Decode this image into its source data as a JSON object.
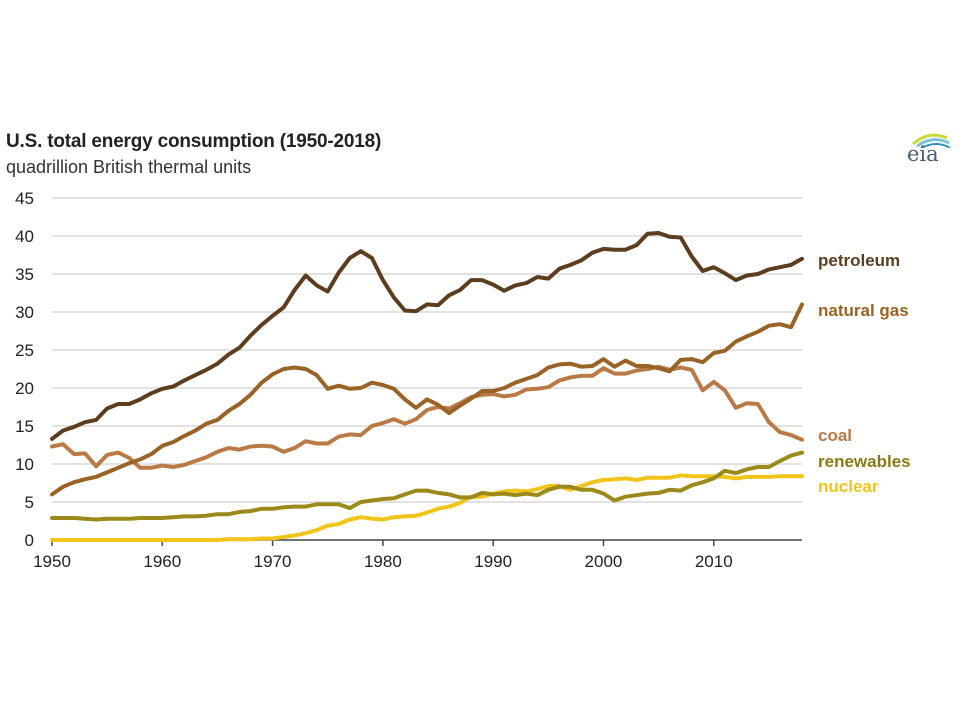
{
  "header": {
    "title": "U.S. total energy consumption (1950-2018)",
    "subtitle": "quadrillion British thermal units",
    "logo_text": "eia"
  },
  "chart_data": {
    "type": "line",
    "title": "U.S. total energy consumption (1950-2018)",
    "subtitle": "quadrillion British thermal units",
    "xlabel": "",
    "ylabel": "quadrillion British thermal units",
    "xlim": [
      1950,
      2018
    ],
    "ylim": [
      0,
      45
    ],
    "xticks": [
      1950,
      1960,
      1970,
      1980,
      1990,
      2000,
      2010
    ],
    "yticks": [
      0,
      5,
      10,
      15,
      20,
      25,
      30,
      35,
      40,
      45
    ],
    "grid": "horizontal",
    "legend": "direct labels at right end of lines",
    "x": [
      1950,
      1951,
      1952,
      1953,
      1954,
      1955,
      1956,
      1957,
      1958,
      1959,
      1960,
      1961,
      1962,
      1963,
      1964,
      1965,
      1966,
      1967,
      1968,
      1969,
      1970,
      1971,
      1972,
      1973,
      1974,
      1975,
      1976,
      1977,
      1978,
      1979,
      1980,
      1981,
      1982,
      1983,
      1984,
      1985,
      1986,
      1987,
      1988,
      1989,
      1990,
      1991,
      1992,
      1993,
      1994,
      1995,
      1996,
      1997,
      1998,
      1999,
      2000,
      2001,
      2002,
      2003,
      2004,
      2005,
      2006,
      2007,
      2008,
      2009,
      2010,
      2011,
      2012,
      2013,
      2014,
      2015,
      2016,
      2017,
      2018
    ],
    "series": [
      {
        "name": "petroleum",
        "color": "#5c3d1e",
        "values": [
          13.3,
          14.4,
          14.9,
          15.5,
          15.8,
          17.3,
          17.9,
          17.9,
          18.5,
          19.3,
          19.9,
          20.2,
          21.0,
          21.7,
          22.4,
          23.2,
          24.4,
          25.3,
          26.9,
          28.3,
          29.5,
          30.6,
          32.9,
          34.8,
          33.5,
          32.7,
          35.2,
          37.1,
          38.0,
          37.1,
          34.2,
          31.9,
          30.2,
          30.1,
          31.0,
          30.9,
          32.2,
          32.9,
          34.2,
          34.2,
          33.6,
          32.8,
          33.5,
          33.8,
          34.6,
          34.4,
          35.7,
          36.2,
          36.8,
          37.8,
          38.3,
          38.2,
          38.2,
          38.8,
          40.3,
          40.4,
          39.9,
          39.8,
          37.3,
          35.4,
          35.9,
          35.1,
          34.2,
          34.8,
          35.0,
          35.6,
          35.9,
          36.2,
          37.0
        ]
      },
      {
        "name": "natural gas",
        "color": "#9a6326",
        "values": [
          6.0,
          7.0,
          7.6,
          8.0,
          8.3,
          8.9,
          9.5,
          10.1,
          10.6,
          11.3,
          12.4,
          12.9,
          13.7,
          14.4,
          15.3,
          15.8,
          17.0,
          17.9,
          19.1,
          20.7,
          21.8,
          22.5,
          22.7,
          22.5,
          21.7,
          19.9,
          20.3,
          19.9,
          20.0,
          20.7,
          20.4,
          19.9,
          18.5,
          17.4,
          18.5,
          17.8,
          16.7,
          17.7,
          18.6,
          19.6,
          19.6,
          20.0,
          20.7,
          21.2,
          21.7,
          22.7,
          23.1,
          23.2,
          22.8,
          22.9,
          23.8,
          22.8,
          23.6,
          22.9,
          22.9,
          22.6,
          22.2,
          23.7,
          23.8,
          23.4,
          24.6,
          24.9,
          26.1,
          26.8,
          27.4,
          28.2,
          28.4,
          28.0,
          31.0
        ]
      },
      {
        "name": "coal",
        "color": "#b97a45",
        "values": [
          12.3,
          12.6,
          11.3,
          11.4,
          9.7,
          11.2,
          11.5,
          10.8,
          9.5,
          9.5,
          9.8,
          9.6,
          9.9,
          10.4,
          10.9,
          11.6,
          12.1,
          11.9,
          12.3,
          12.4,
          12.3,
          11.6,
          12.1,
          13.0,
          12.7,
          12.7,
          13.6,
          13.9,
          13.8,
          15.0,
          15.4,
          15.9,
          15.3,
          15.9,
          17.1,
          17.5,
          17.3,
          18.0,
          18.8,
          19.1,
          19.2,
          18.9,
          19.1,
          19.8,
          19.9,
          20.1,
          21.0,
          21.4,
          21.6,
          21.6,
          22.6,
          21.9,
          21.9,
          22.3,
          22.5,
          22.8,
          22.4,
          22.7,
          22.4,
          19.7,
          20.8,
          19.7,
          17.4,
          18.0,
          17.9,
          15.5,
          14.2,
          13.8,
          13.2
        ]
      },
      {
        "name": "renewables",
        "color": "#9b8a1a",
        "values": [
          2.9,
          2.9,
          2.9,
          2.8,
          2.7,
          2.8,
          2.8,
          2.8,
          2.9,
          2.9,
          2.9,
          3.0,
          3.1,
          3.1,
          3.2,
          3.4,
          3.4,
          3.7,
          3.8,
          4.1,
          4.1,
          4.3,
          4.4,
          4.4,
          4.7,
          4.7,
          4.7,
          4.2,
          5.0,
          5.2,
          5.4,
          5.5,
          6.0,
          6.5,
          6.5,
          6.2,
          6.0,
          5.6,
          5.6,
          6.2,
          6.0,
          6.1,
          5.9,
          6.1,
          5.9,
          6.6,
          7.0,
          7.0,
          6.6,
          6.6,
          6.1,
          5.2,
          5.7,
          5.9,
          6.1,
          6.2,
          6.6,
          6.5,
          7.2,
          7.6,
          8.1,
          9.1,
          8.8,
          9.3,
          9.6,
          9.6,
          10.4,
          11.1,
          11.5
        ]
      },
      {
        "name": "nuclear",
        "color": "#f0c419",
        "values": [
          0.0,
          0.0,
          0.0,
          0.0,
          0.0,
          0.0,
          0.0,
          0.0,
          0.0,
          0.0,
          0.0,
          0.0,
          0.0,
          0.0,
          0.0,
          0.0,
          0.1,
          0.1,
          0.1,
          0.2,
          0.2,
          0.4,
          0.6,
          0.9,
          1.3,
          1.9,
          2.1,
          2.7,
          3.0,
          2.8,
          2.7,
          3.0,
          3.1,
          3.2,
          3.6,
          4.1,
          4.4,
          4.9,
          5.7,
          5.7,
          6.1,
          6.4,
          6.5,
          6.4,
          6.7,
          7.1,
          7.1,
          6.6,
          7.1,
          7.6,
          7.9,
          8.0,
          8.1,
          7.9,
          8.2,
          8.2,
          8.2,
          8.5,
          8.4,
          8.4,
          8.4,
          8.3,
          8.1,
          8.3,
          8.3,
          8.3,
          8.4,
          8.4,
          8.4
        ]
      }
    ]
  }
}
